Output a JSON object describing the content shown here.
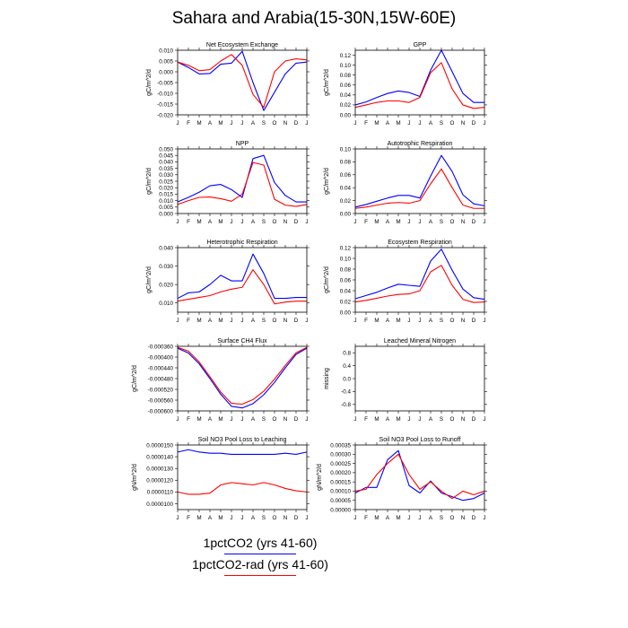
{
  "title": "Sahara and Arabia(15-30N,15W-60E)",
  "legend": [
    {
      "label": "1pctCO2 (yrs 41-60)",
      "color": "#0000ff"
    },
    {
      "label": "1pctCO2-rad (yrs 41-60)",
      "color": "#ff0000"
    }
  ],
  "months": [
    "J",
    "F",
    "M",
    "A",
    "M",
    "J",
    "J",
    "A",
    "S",
    "O",
    "N",
    "D",
    "J"
  ],
  "chart_data": [
    {
      "type": "line",
      "title": "Net Ecosystem Exchange",
      "ylabel": "gC/m^2/d",
      "ylim": [
        -0.02,
        0.01
      ],
      "yticks": [
        0.01,
        0.005,
        0.0,
        -0.005,
        -0.01,
        -0.015,
        -0.02
      ],
      "ydec": 3,
      "series": [
        {
          "name": "1pctCO2 (yrs 41-60)",
          "values": [
            0.0045,
            0.002,
            -0.001,
            -0.0008,
            0.0035,
            0.004,
            0.0095,
            -0.005,
            -0.018,
            -0.0095,
            -0.001,
            0.004,
            0.0045
          ]
        },
        {
          "name": "1pctCO2-rad (yrs 41-60)",
          "values": [
            0.0045,
            0.003,
            0.0005,
            0.001,
            0.005,
            0.008,
            0.003,
            -0.0105,
            -0.0165,
            0.0,
            0.005,
            0.006,
            0.0055
          ]
        }
      ]
    },
    {
      "type": "line",
      "title": "GPP",
      "ylabel": "gC/m^2/d",
      "ylim": [
        0,
        0.13
      ],
      "yticks": [
        0.12,
        0.1,
        0.08,
        0.06,
        0.04,
        0.02,
        0.0
      ],
      "ydec": 2,
      "series": [
        {
          "name": "1pctCO2 (yrs 41-60)",
          "values": [
            0.02,
            0.026,
            0.035,
            0.043,
            0.048,
            0.045,
            0.037,
            0.09,
            0.13,
            0.087,
            0.043,
            0.025,
            0.025
          ]
        },
        {
          "name": "1pctCO2-rad (yrs 41-60)",
          "values": [
            0.015,
            0.02,
            0.025,
            0.028,
            0.028,
            0.025,
            0.035,
            0.085,
            0.105,
            0.052,
            0.02,
            0.013,
            0.015
          ]
        }
      ]
    },
    {
      "type": "line",
      "title": "NPP",
      "ylabel": "gC/m^2/d",
      "ylim": [
        0,
        0.05
      ],
      "yticks": [
        0.05,
        0.045,
        0.04,
        0.035,
        0.03,
        0.025,
        0.02,
        0.015,
        0.01,
        0.005,
        0.0
      ],
      "ydec": 3,
      "series": [
        {
          "name": "1pctCO2 (yrs 41-60)",
          "values": [
            0.009,
            0.0125,
            0.0165,
            0.0215,
            0.0225,
            0.0185,
            0.0125,
            0.0425,
            0.045,
            0.024,
            0.014,
            0.009,
            0.009
          ]
        },
        {
          "name": "1pctCO2-rad (yrs 41-60)",
          "values": [
            0.007,
            0.01,
            0.0125,
            0.0128,
            0.0115,
            0.0095,
            0.015,
            0.0395,
            0.0375,
            0.011,
            0.0065,
            0.0055,
            0.007
          ]
        }
      ]
    },
    {
      "type": "line",
      "title": "Autotrophic Respiration",
      "ylabel": "gC/m^2/d",
      "ylim": [
        0,
        0.1
      ],
      "yticks": [
        0.1,
        0.08,
        0.06,
        0.04,
        0.02,
        0.0
      ],
      "ydec": 2,
      "series": [
        {
          "name": "1pctCO2 (yrs 41-60)",
          "values": [
            0.01,
            0.014,
            0.019,
            0.024,
            0.028,
            0.028,
            0.024,
            0.058,
            0.09,
            0.065,
            0.029,
            0.015,
            0.012
          ]
        },
        {
          "name": "1pctCO2-rad (yrs 41-60)",
          "values": [
            0.008,
            0.01,
            0.013,
            0.016,
            0.017,
            0.016,
            0.02,
            0.046,
            0.069,
            0.04,
            0.013,
            0.008,
            0.008
          ]
        }
      ]
    },
    {
      "type": "line",
      "title": "Heterotrophic Respiration",
      "ylabel": "gC/m^2/d",
      "ylim": [
        0.005,
        0.04
      ],
      "yticks": [
        0.04,
        0.03,
        0.02,
        0.01
      ],
      "ydec": 3,
      "series": [
        {
          "name": "1pctCO2 (yrs 41-60)",
          "values": [
            0.0125,
            0.0155,
            0.016,
            0.02,
            0.025,
            0.022,
            0.022,
            0.0365,
            0.026,
            0.0125,
            0.0125,
            0.013,
            0.013
          ]
        },
        {
          "name": "1pctCO2-rad (yrs 41-60)",
          "values": [
            0.011,
            0.012,
            0.013,
            0.014,
            0.016,
            0.0175,
            0.0185,
            0.028,
            0.02,
            0.0095,
            0.0105,
            0.011,
            0.011
          ]
        }
      ]
    },
    {
      "type": "line",
      "title": "Ecosystem Respiration",
      "ylabel": "gC/m^2/d",
      "ylim": [
        0,
        0.12
      ],
      "yticks": [
        0.12,
        0.1,
        0.08,
        0.06,
        0.04,
        0.02,
        0.0
      ],
      "ydec": 2,
      "series": [
        {
          "name": "1pctCO2 (yrs 41-60)",
          "values": [
            0.025,
            0.031,
            0.037,
            0.045,
            0.052,
            0.05,
            0.048,
            0.095,
            0.117,
            0.078,
            0.043,
            0.027,
            0.024
          ]
        },
        {
          "name": "1pctCO2-rad (yrs 41-60)",
          "values": [
            0.019,
            0.022,
            0.026,
            0.03,
            0.033,
            0.034,
            0.04,
            0.075,
            0.087,
            0.05,
            0.024,
            0.018,
            0.019
          ]
        }
      ]
    },
    {
      "type": "line",
      "title": "Surface CH4 Flux",
      "ylabel": "gC/m^2/d",
      "ylim": [
        -0.0006,
        -0.00036
      ],
      "yticks": [
        -0.00036,
        -0.0004,
        -0.00044,
        -0.00048,
        -0.00052,
        -0.00056,
        -0.0006
      ],
      "ydec": 6,
      "series": [
        {
          "name": "1pctCO2 (yrs 41-60)",
          "values": [
            -0.000367,
            -0.000385,
            -0.000425,
            -0.00048,
            -0.000538,
            -0.000583,
            -0.000589,
            -0.000573,
            -0.00054,
            -0.000494,
            -0.00044,
            -0.00039,
            -0.000367
          ]
        },
        {
          "name": "1pctCO2-rad (yrs 41-60)",
          "values": [
            -0.000364,
            -0.000378,
            -0.000418,
            -0.000473,
            -0.00053,
            -0.000572,
            -0.000575,
            -0.000558,
            -0.000527,
            -0.000482,
            -0.000431,
            -0.000384,
            -0.000364
          ]
        }
      ]
    },
    {
      "type": "line",
      "title": "Leached Mineral Nitrogen",
      "ylabel": "missing",
      "ylim": [
        -1,
        1
      ],
      "yticks": [
        0.8,
        0.4,
        0,
        -0.4,
        -0.8
      ],
      "ydec": 1,
      "series": []
    },
    {
      "type": "line",
      "title": "Soil NO3 Pool Loss to Leaching",
      "ylabel": "gN/m^2/d",
      "ylim": [
        9.5e-06,
        1.5e-05
      ],
      "yticks": [
        1.5e-05,
        1.4e-05,
        1.3e-05,
        1.2e-05,
        1.1e-05,
        1e-05
      ],
      "ydec": 7,
      "series": [
        {
          "name": "1pctCO2 (yrs 41-60)",
          "values": [
            1.44e-05,
            1.46e-05,
            1.44e-05,
            1.43e-05,
            1.43e-05,
            1.42e-05,
            1.42e-05,
            1.42e-05,
            1.42e-05,
            1.42e-05,
            1.43e-05,
            1.42e-05,
            1.44e-05
          ]
        },
        {
          "name": "1pctCO2-rad (yrs 41-60)",
          "values": [
            1.1e-05,
            1.08e-05,
            1.08e-05,
            1.09e-05,
            1.16e-05,
            1.18e-05,
            1.17e-05,
            1.16e-05,
            1.18e-05,
            1.16e-05,
            1.13e-05,
            1.11e-05,
            1.1e-05
          ]
        }
      ]
    },
    {
      "type": "line",
      "title": "Soil NO3 Pool Loss to Runoff",
      "ylabel": "gN/m^2/d",
      "ylim": [
        0,
        0.00035
      ],
      "yticks": [
        0.00035,
        0.0003,
        0.00025,
        0.0002,
        0.00015,
        0.0001,
        5e-05,
        0.0
      ],
      "ydec": 5,
      "series": [
        {
          "name": "1pctCO2 (yrs 41-60)",
          "values": [
            9e-05,
            0.00012,
            0.00012,
            0.00027,
            0.00032,
            0.00013,
            9e-05,
            0.000155,
            9e-05,
            7e-05,
            5e-05,
            6e-05,
            9e-05
          ]
        },
        {
          "name": "1pctCO2-rad (yrs 41-60)",
          "values": [
            0.0001,
            0.00011,
            0.00019,
            0.00025,
            0.0003,
            0.00019,
            0.00011,
            0.00015,
            0.0001,
            6e-05,
            0.0001,
            8e-05,
            0.0001
          ]
        }
      ]
    }
  ]
}
